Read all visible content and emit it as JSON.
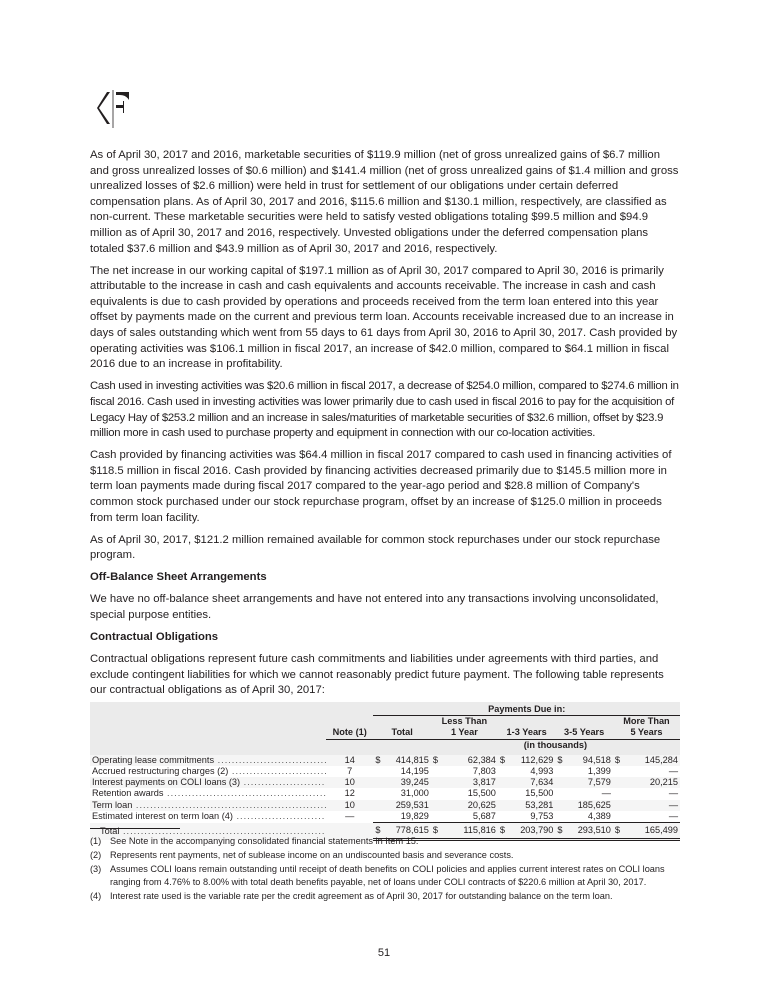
{
  "logo": {
    "text": "KF",
    "name": "Korn Ferry logo"
  },
  "paragraphs": [
    "As of April 30, 2017 and 2016, marketable securities of $119.9 million (net of gross unrealized gains of $6.7 million and gross unrealized losses of $0.6 million) and $141.4 million (net of gross unrealized gains of $1.4 million and gross unrealized losses of $2.6 million) were held in trust for settlement of our obligations under certain deferred compensation plans. As of April 30, 2017 and 2016, $115.6 million and $130.1 million, respectively, are classified as non-current. These marketable securities were held to satisfy vested obligations totaling $99.5 million and $94.9 million as of April 30, 2017 and 2016, respectively. Unvested obligations under the deferred compensation plans totaled $37.6 million and $43.9 million as of April 30, 2017 and 2016, respectively.",
    "The net increase in our working capital of $197.1 million as of April 30, 2017 compared to April 30, 2016 is primarily attributable to the increase in cash and cash equivalents and accounts receivable. The increase in cash and cash equivalents is due to cash provided by operations and proceeds received from the term loan entered into this year offset by payments made on the current and previous term loan. Accounts receivable increased due to an increase in days of sales outstanding which went from 55 days to 61 days from April 30, 2016 to April 30, 2017. Cash provided by operating activities was $106.1 million in fiscal 2017, an increase of $42.0 million, compared to $64.1 million in fiscal 2016 due to an increase in profitability.",
    "Cash used in investing activities was $20.6 million in fiscal 2017, a decrease of $254.0 million, compared to $274.6 million in fiscal 2016. Cash used in investing activities was lower primarily due to cash used in fiscal 2016 to pay for the acquisition of Legacy Hay of $253.2 million and an increase in sales/maturities of marketable securities of $32.6 million, offset by $23.9 million more in cash used to purchase property and equipment in connection with our co-location activities.",
    "Cash provided by financing activities was $64.4 million in fiscal 2017 compared to cash used in financing activities of $118.5 million in fiscal 2016. Cash provided by financing activities decreased primarily due to $145.5 million more in term loan payments made during fiscal 2017 compared to the year-ago period and $28.8 million of Company's common stock purchased under our stock repurchase program, offset by an increase of $125.0 million in proceeds from term loan facility.",
    "As of April 30, 2017, $121.2 million remained available for common stock repurchases under our stock repurchase program."
  ],
  "off_balance": {
    "heading": "Off-Balance Sheet Arrangements",
    "text": "We have no off-balance sheet arrangements and have not entered into any transactions involving unconsolidated, special purpose entities."
  },
  "contractual": {
    "heading": "Contractual Obligations",
    "text": "Contractual obligations represent future cash commitments and liabilities under agreements with third parties, and exclude contingent liabilities for which we cannot reasonably predict future payment. The following table represents our contractual obligations as of April 30, 2017:"
  },
  "table": {
    "group_header": "Payments Due in:",
    "units": "(in thousands)",
    "columns": [
      "Note (1)",
      "Total",
      "Less Than 1 Year",
      "1-3 Years",
      "3-5 Years",
      "More Than 5 Years"
    ],
    "col_top": [
      "",
      "",
      "Less Than",
      "",
      "",
      "More Than"
    ],
    "col_bottom": [
      "Note (1)",
      "Total",
      "1 Year",
      "1-3 Years",
      "3-5 Years",
      "5 Years"
    ],
    "rows": [
      {
        "label": "Operating lease commitments",
        "note": "14",
        "total": "414,815",
        "lt1": "62,384",
        "y13": "112,629",
        "y35": "94,518",
        "gt5": "145,284"
      },
      {
        "label": "Accrued restructuring charges (2)",
        "note": "7",
        "total": "14,195",
        "lt1": "7,803",
        "y13": "4,993",
        "y35": "1,399",
        "gt5": "—"
      },
      {
        "label": "Interest payments on COLI loans (3)",
        "note": "10",
        "total": "39,245",
        "lt1": "3,817",
        "y13": "7,634",
        "y35": "7,579",
        "gt5": "20,215"
      },
      {
        "label": "Retention awards",
        "note": "12",
        "total": "31,000",
        "lt1": "15,500",
        "y13": "15,500",
        "y35": "—",
        "gt5": "—"
      },
      {
        "label": "Term loan",
        "note": "10",
        "total": "259,531",
        "lt1": "20,625",
        "y13": "53,281",
        "y35": "185,625",
        "gt5": "—"
      },
      {
        "label": "Estimated interest on term loan (4)",
        "note": "—",
        "total": "19,829",
        "lt1": "5,687",
        "y13": "9,753",
        "y35": "4,389",
        "gt5": "—"
      }
    ],
    "total": {
      "label": "Total",
      "total": "778,615",
      "lt1": "115,816",
      "y13": "203,790",
      "y35": "293,510",
      "gt5": "165,499"
    },
    "currency": "$"
  },
  "footnotes": [
    {
      "key": "(1)",
      "text": "See Note in the accompanying consolidated financial statements in Item 15."
    },
    {
      "key": "(2)",
      "text": "Represents rent payments, net of sublease income on an undiscounted basis and severance costs."
    },
    {
      "key": "(3)",
      "text": "Assumes COLI loans remain outstanding until receipt of death benefits on COLI policies and applies current interest rates on COLI loans ranging from 4.76% to 8.00% with total death benefits payable, net of loans under COLI contracts of $220.6 million at April 30, 2017."
    },
    {
      "key": "(4)",
      "text": "Interest rate used is the variable rate per the credit agreement as of April 30, 2017 for outstanding balance on the term loan."
    }
  ],
  "page_number": "51"
}
